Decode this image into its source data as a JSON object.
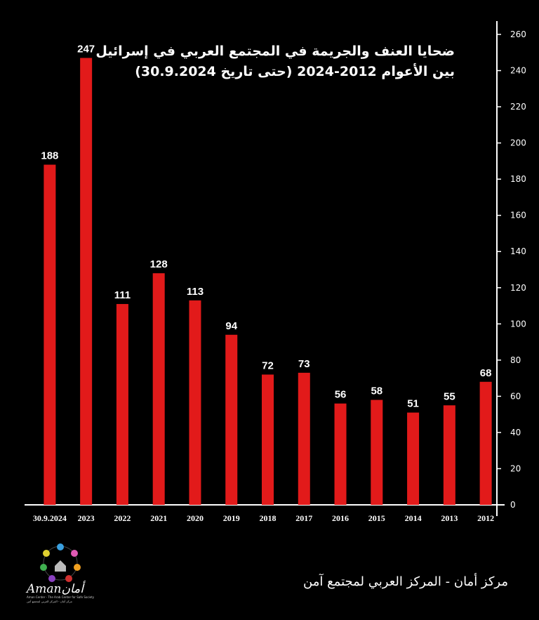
{
  "title": {
    "line1": "ضحايا العنف والجريمة في المجتمع العربي في إسرائيل",
    "line2": "بين الأعوام 2012-2024 (حتى تاريخ 30.9.2024)"
  },
  "footer": "مركز أمان - المركز العربي لمجتمع آمن",
  "logo": {
    "word": "Amanأمان",
    "tagline1": "Aman Center - The Arab Center for Safe Society",
    "tagline2": "مركز أمان - المركز العربي لمجتمع آمن"
  },
  "colors": {
    "bar": "#e21a1a",
    "background": "#000000",
    "text": "#ffffff"
  },
  "chart_data": {
    "type": "bar",
    "categories": [
      "30.9.2024",
      "2023",
      "2022",
      "2021",
      "2020",
      "2019",
      "2018",
      "2017",
      "2016",
      "2015",
      "2014",
      "2013",
      "2012"
    ],
    "values": [
      188,
      247,
      111,
      128,
      113,
      94,
      72,
      73,
      56,
      58,
      51,
      55,
      68
    ],
    "data_labels": [
      "188",
      "247",
      "111",
      "128",
      "113",
      "94",
      "72",
      "73",
      "56",
      "58",
      "51",
      "55",
      "68"
    ],
    "ylim": [
      0,
      260
    ],
    "yticks": [
      0,
      20,
      40,
      60,
      80,
      100,
      120,
      140,
      160,
      180,
      200,
      220,
      240,
      260
    ],
    "yaxis_position": "right",
    "grid": false,
    "legend": "none"
  }
}
